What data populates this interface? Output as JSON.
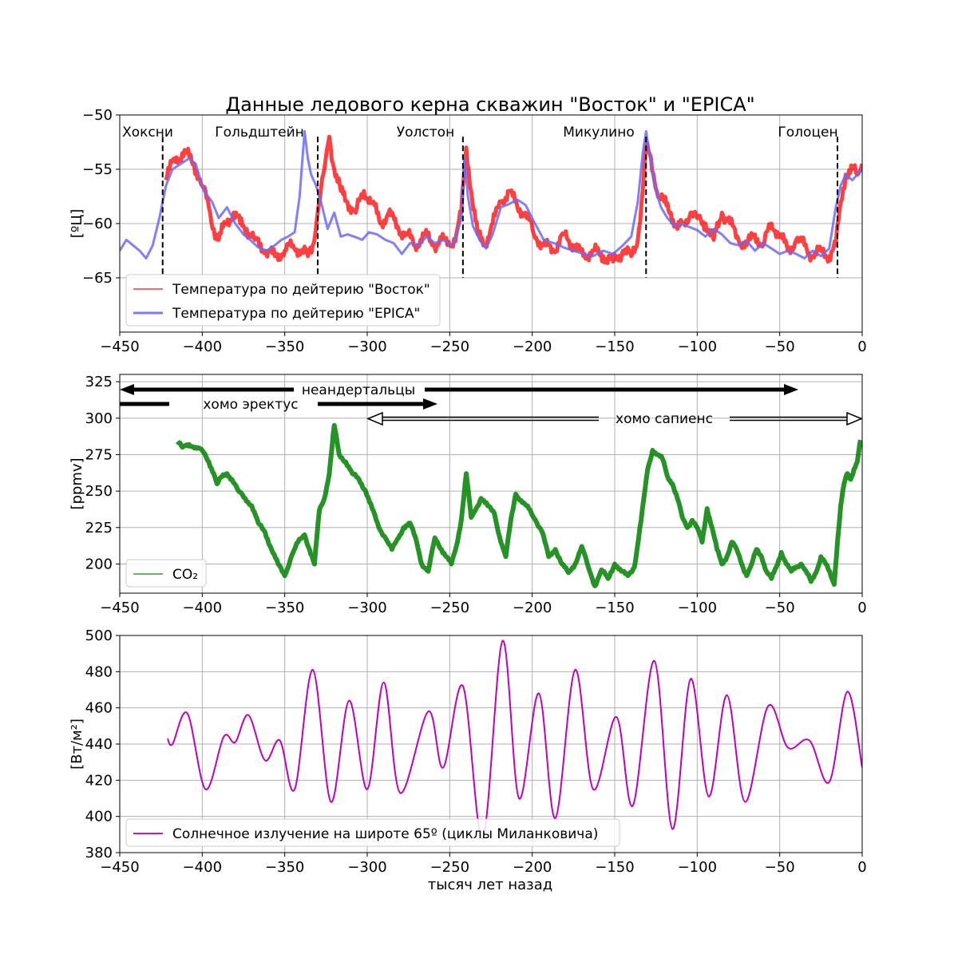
{
  "title": "Данные ледового керна скважин \"Восток\" и \"EPICA\"",
  "xlabel": "тысяч лет назад",
  "x_ticks": [
    -450,
    -400,
    -350,
    -300,
    -250,
    -200,
    -150,
    -100,
    -50,
    0
  ],
  "colors": {
    "vostok": "#ff0000",
    "epica": "#6a6aff",
    "co2": "#008000",
    "insolation": "#bf00bf",
    "grid": "#b0b0b0"
  },
  "chart_data": [
    {
      "type": "line",
      "ylabel": "[ºЦ]",
      "xlim": [
        -450,
        0
      ],
      "ylim": [
        -70,
        -50
      ],
      "y_ticks": [
        -65,
        -60,
        -55,
        -50
      ],
      "grid": true,
      "legend_position": "lower-left",
      "interglacials": [
        {
          "name": "Хоксни",
          "x": -424
        },
        {
          "name": "Гольдштейн",
          "x": -330
        },
        {
          "name": "Уолстон",
          "x": -242
        },
        {
          "name": "Микулино",
          "x": -131
        },
        {
          "name": "Голоцен",
          "x": -15
        }
      ],
      "series": [
        {
          "name": "Температура по дейтерию \"Восток\"",
          "x": [
            -422,
            -417,
            -410,
            -405,
            -400,
            -396,
            -393,
            -390,
            -386,
            -381,
            -377,
            -373,
            -368,
            -362,
            -356,
            -350,
            -345,
            -340,
            -336,
            -333,
            -330,
            -326,
            -323,
            -320,
            -316,
            -312,
            -307,
            -302,
            -297,
            -292,
            -287,
            -281,
            -276,
            -271,
            -265,
            -260,
            -255,
            -250,
            -246,
            -243,
            -240,
            -237,
            -233,
            -229,
            -224,
            -219,
            -214,
            -209,
            -204,
            -199,
            -193,
            -187,
            -181,
            -175,
            -169,
            -163,
            -157,
            -151,
            -145,
            -140,
            -136,
            -133,
            -131,
            -128,
            -126,
            -123,
            -120,
            -116,
            -112,
            -108,
            -104,
            -100,
            -95,
            -90,
            -85,
            -80,
            -75,
            -70,
            -65,
            -60,
            -55,
            -50,
            -45,
            -40,
            -35,
            -30,
            -25,
            -20,
            -16,
            -13,
            -10,
            -6,
            -3,
            0
          ],
          "y": [
            -56,
            -54,
            -53.5,
            -54.5,
            -56.5,
            -58.5,
            -60.5,
            -61.5,
            -60,
            -59,
            -60,
            -60.5,
            -61.5,
            -62.5,
            -63,
            -62.5,
            -62,
            -62.5,
            -63,
            -62,
            -59,
            -55,
            -52,
            -55,
            -57,
            -58,
            -59,
            -57,
            -58,
            -60,
            -59,
            -60.5,
            -61,
            -62,
            -61,
            -62,
            -61.5,
            -62,
            -61,
            -59,
            -53,
            -57,
            -61,
            -62,
            -60,
            -58,
            -57,
            -58.5,
            -59,
            -61,
            -62,
            -62.5,
            -61,
            -62,
            -63,
            -62.5,
            -63,
            -63.5,
            -62.5,
            -63,
            -61.5,
            -57,
            -53,
            -54,
            -56,
            -57.5,
            -58,
            -59,
            -60.5,
            -60,
            -59,
            -59.5,
            -60,
            -61.5,
            -59,
            -60,
            -61.5,
            -62,
            -61,
            -62,
            -60,
            -61,
            -62.5,
            -61.5,
            -62,
            -63,
            -62.5,
            -63,
            -62,
            -58,
            -55.5,
            -55,
            -55.5,
            -54.5
          ]
        },
        {
          "name": "Температура по дейтерию \"EPICA\"",
          "x": [
            -450,
            -446,
            -442,
            -438,
            -434,
            -430,
            -426,
            -422,
            -418,
            -413,
            -408,
            -404,
            -399,
            -394,
            -390,
            -385,
            -380,
            -375,
            -371,
            -366,
            -361,
            -356,
            -352,
            -348,
            -344,
            -341,
            -338,
            -336,
            -334,
            -331,
            -328,
            -324,
            -320,
            -316,
            -312,
            -308,
            -303,
            -299,
            -294,
            -289,
            -284,
            -279,
            -274,
            -269,
            -264,
            -259,
            -254,
            -249,
            -246,
            -243,
            -241,
            -239,
            -236,
            -232,
            -228,
            -224,
            -219,
            -214,
            -209,
            -204,
            -199,
            -193,
            -187,
            -181,
            -175,
            -169,
            -163,
            -157,
            -151,
            -145,
            -140,
            -136,
            -133,
            -131,
            -129,
            -127,
            -125,
            -122,
            -118,
            -114,
            -110,
            -105,
            -100,
            -95,
            -90,
            -85,
            -80,
            -75,
            -70,
            -65,
            -60,
            -55,
            -50,
            -45,
            -40,
            -35,
            -30,
            -25,
            -20,
            -16,
            -13,
            -10,
            -6,
            -3,
            0
          ],
          "y": [
            -62.5,
            -61.5,
            -62,
            -62.5,
            -63.2,
            -62,
            -59.5,
            -56.5,
            -55,
            -54.5,
            -54,
            -54.5,
            -57,
            -58,
            -59.5,
            -58.5,
            -60,
            -61,
            -61.5,
            -62.2,
            -62.5,
            -62,
            -61.5,
            -61.2,
            -60.8,
            -57.5,
            -51.5,
            -54,
            -55.5,
            -56.5,
            -58,
            -60.5,
            -59,
            -61.2,
            -61,
            -61.2,
            -61.5,
            -60.8,
            -61,
            -61.5,
            -61.8,
            -62.8,
            -61.8,
            -62,
            -61.2,
            -61.8,
            -61.5,
            -62,
            -61.2,
            -59.5,
            -54,
            -57.5,
            -60.2,
            -61.5,
            -62.3,
            -61,
            -58.5,
            -58.2,
            -57.8,
            -58.3,
            -59.8,
            -61.5,
            -61.8,
            -62.2,
            -62.5,
            -62.8,
            -63,
            -62.5,
            -62.8,
            -62,
            -61.2,
            -58,
            -53.5,
            -51.5,
            -53.5,
            -55.3,
            -57,
            -58.5,
            -59.5,
            -60.2,
            -60,
            -60.3,
            -60.6,
            -61.2,
            -60.5,
            -61,
            -61.8,
            -62,
            -61.6,
            -62.5,
            -61.8,
            -62.3,
            -62.8,
            -62.5,
            -62.8,
            -63.2,
            -62.5,
            -63,
            -62.3,
            -58.5,
            -56.5,
            -55.5,
            -56,
            -55.5,
            -55
          ]
        }
      ]
    },
    {
      "type": "line",
      "ylabel": "[ppmv]",
      "xlim": [
        -450,
        0
      ],
      "ylim": [
        180,
        330
      ],
      "y_ticks": [
        200,
        225,
        250,
        275,
        300,
        325
      ],
      "grid": true,
      "legend_position": "lower-left",
      "hominins": [
        {
          "name": "неандертальцы",
          "from": -450,
          "to": -40,
          "level": 322,
          "style": "solid"
        },
        {
          "name": "хомо эректус",
          "from": -450,
          "to": -260,
          "level": 312,
          "style": "solid"
        },
        {
          "name": "хомо сапиенс",
          "from": -300,
          "to": 0,
          "level": 302,
          "style": "double"
        }
      ],
      "series": [
        {
          "name": "CO₂",
          "x": [
            -415,
            -412,
            -408,
            -404,
            -400,
            -396,
            -393,
            -391,
            -388,
            -385,
            -382,
            -378,
            -374,
            -370,
            -366,
            -362,
            -358,
            -354,
            -350,
            -346,
            -342,
            -338,
            -335,
            -332,
            -329,
            -326,
            -323,
            -320,
            -317,
            -313,
            -309,
            -305,
            -301,
            -297,
            -293,
            -289,
            -285,
            -281,
            -278,
            -274,
            -270,
            -267,
            -263,
            -259,
            -255,
            -252,
            -249,
            -246,
            -243,
            -240,
            -237,
            -234,
            -231,
            -227,
            -223,
            -219,
            -216,
            -213,
            -210,
            -206,
            -202,
            -198,
            -194,
            -190,
            -186,
            -182,
            -178,
            -174,
            -170,
            -166,
            -162,
            -158,
            -154,
            -150,
            -146,
            -142,
            -138,
            -134,
            -130,
            -127,
            -124,
            -121,
            -118,
            -115,
            -112,
            -109,
            -106,
            -103,
            -100,
            -97,
            -94,
            -91,
            -88,
            -85,
            -82,
            -79,
            -76,
            -73,
            -70,
            -67,
            -64,
            -61,
            -58,
            -55,
            -52,
            -49,
            -46,
            -43,
            -40,
            -37,
            -34,
            -31,
            -28,
            -25,
            -22,
            -19,
            -17,
            -15,
            -13,
            -11,
            -9,
            -7,
            -5,
            -3,
            -1
          ],
          "y": [
            284,
            280,
            282,
            280,
            278,
            270,
            262,
            255,
            260,
            262,
            258,
            250,
            245,
            240,
            228,
            222,
            210,
            200,
            192,
            205,
            215,
            220,
            210,
            200,
            237,
            245,
            262,
            295,
            275,
            270,
            262,
            258,
            250,
            238,
            225,
            218,
            210,
            218,
            225,
            228,
            215,
            200,
            195,
            218,
            210,
            205,
            200,
            212,
            230,
            262,
            232,
            238,
            245,
            240,
            235,
            215,
            205,
            230,
            248,
            242,
            238,
            230,
            222,
            205,
            210,
            200,
            194,
            200,
            212,
            198,
            185,
            196,
            190,
            200,
            195,
            192,
            198,
            230,
            265,
            278,
            275,
            272,
            260,
            255,
            245,
            232,
            225,
            230,
            225,
            215,
            238,
            225,
            210,
            200,
            205,
            215,
            210,
            200,
            192,
            200,
            210,
            205,
            195,
            190,
            198,
            208,
            200,
            195,
            198,
            200,
            195,
            188,
            194,
            205,
            200,
            192,
            186,
            215,
            240,
            255,
            262,
            258,
            265,
            270,
            285
          ]
        }
      ]
    },
    {
      "type": "line",
      "ylabel": "[Вт/м²]",
      "xlim": [
        -450,
        0
      ],
      "ylim": [
        380,
        500
      ],
      "y_ticks": [
        380,
        400,
        420,
        440,
        460,
        480,
        500
      ],
      "grid": true,
      "legend_position": "lower-left",
      "series": [
        {
          "name": "Солнечное излучение на широте 65º (циклы Миланковича)",
          "x": [
            -421,
            -418,
            -409,
            -398,
            -387,
            -380,
            -372,
            -362,
            -353,
            -344,
            -333,
            -322,
            -311,
            -300,
            -290,
            -280,
            -263,
            -254,
            -242,
            -230,
            -218,
            -208,
            -196,
            -186,
            -174,
            -163,
            -149,
            -139,
            -126,
            -115,
            -104,
            -93,
            -82,
            -71,
            -57,
            -45,
            -32,
            -20,
            -9,
            0
          ],
          "y": [
            443,
            440,
            457,
            415,
            444,
            441,
            456,
            431,
            442,
            415,
            481,
            408,
            464,
            415,
            474,
            413,
            458,
            427,
            472,
            388,
            497,
            410,
            468,
            399,
            481,
            415,
            455,
            406,
            486,
            393,
            476,
            411,
            467,
            408,
            461,
            438,
            442,
            419,
            469,
            427
          ]
        }
      ]
    }
  ]
}
